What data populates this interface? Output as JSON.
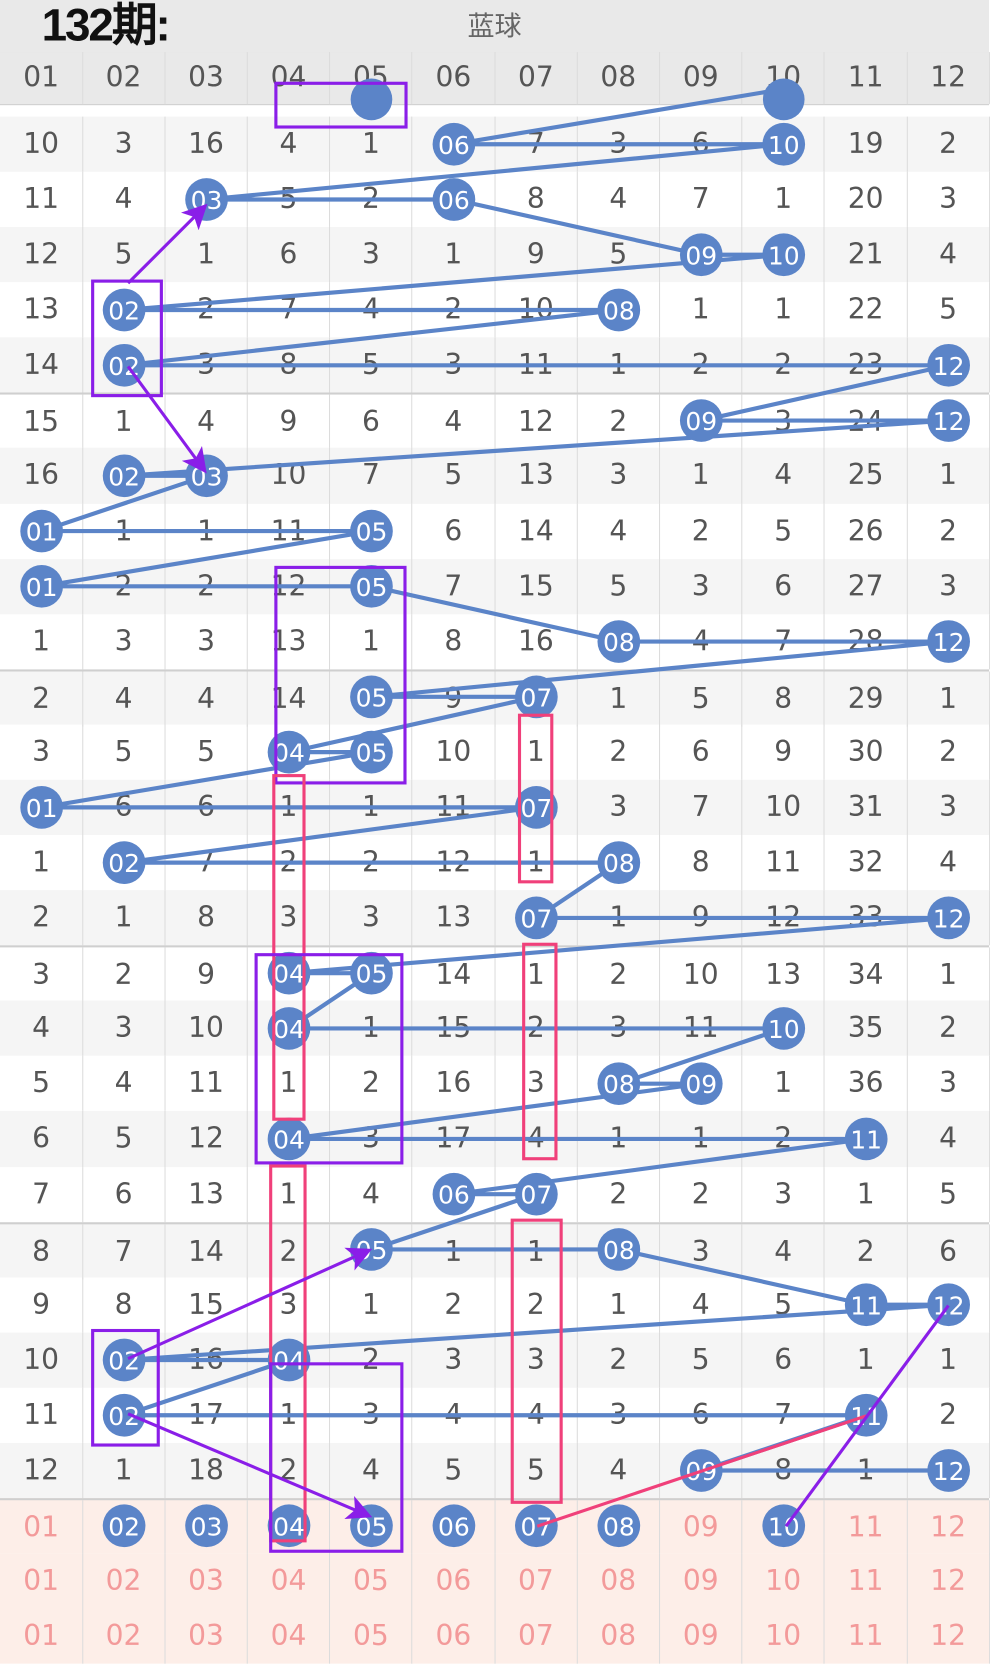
{
  "header": {
    "title": "蓝球"
  },
  "columns": [
    "01",
    "02",
    "03",
    "04",
    "05",
    "06",
    "07",
    "08",
    "09",
    "10",
    "11",
    "12"
  ],
  "colors": {
    "ball": "#5b84c8",
    "line": "#5b84c8",
    "annot_purple": "#8a1ee8",
    "annot_pink": "#f0407a",
    "pred_text": "#f39a9a",
    "pred_bg": "#fdeee8"
  },
  "partial_top_hits": [
    5,
    10
  ],
  "rows": [
    {
      "cells": [
        "10",
        "3",
        "16",
        "4",
        "1",
        "06",
        "7",
        "3",
        "6",
        "10",
        "19",
        "2"
      ],
      "hits": [
        6,
        10
      ]
    },
    {
      "cells": [
        "11",
        "4",
        "03",
        "5",
        "2",
        "06",
        "8",
        "4",
        "7",
        "1",
        "20",
        "3"
      ],
      "hits": [
        3,
        6
      ]
    },
    {
      "cells": [
        "12",
        "5",
        "1",
        "6",
        "3",
        "1",
        "9",
        "5",
        "09",
        "10",
        "21",
        "4"
      ],
      "hits": [
        9,
        10
      ]
    },
    {
      "cells": [
        "13",
        "02",
        "2",
        "7",
        "4",
        "2",
        "10",
        "08",
        "1",
        "1",
        "22",
        "5"
      ],
      "hits": [
        2,
        8
      ]
    },
    {
      "cells": [
        "14",
        "02",
        "3",
        "8",
        "5",
        "3",
        "11",
        "1",
        "2",
        "2",
        "23",
        "12"
      ],
      "hits": [
        2,
        12
      ]
    },
    {
      "cells": [
        "15",
        "1",
        "4",
        "9",
        "6",
        "4",
        "12",
        "2",
        "09",
        "3",
        "24",
        "12"
      ],
      "hits": [
        9,
        12
      ]
    },
    {
      "cells": [
        "16",
        "02",
        "03",
        "10",
        "7",
        "5",
        "13",
        "3",
        "1",
        "4",
        "25",
        "1"
      ],
      "hits": [
        2,
        3
      ]
    },
    {
      "cells": [
        "01",
        "1",
        "1",
        "11",
        "05",
        "6",
        "14",
        "4",
        "2",
        "5",
        "26",
        "2"
      ],
      "hits": [
        1,
        5
      ]
    },
    {
      "cells": [
        "01",
        "2",
        "2",
        "12",
        "05",
        "7",
        "15",
        "5",
        "3",
        "6",
        "27",
        "3"
      ],
      "hits": [
        1,
        5
      ]
    },
    {
      "cells": [
        "1",
        "3",
        "3",
        "13",
        "1",
        "8",
        "16",
        "08",
        "4",
        "7",
        "28",
        "12"
      ],
      "hits": [
        8,
        12
      ]
    },
    {
      "cells": [
        "2",
        "4",
        "4",
        "14",
        "05",
        "9",
        "07",
        "1",
        "5",
        "8",
        "29",
        "1"
      ],
      "hits": [
        5,
        7
      ]
    },
    {
      "cells": [
        "3",
        "5",
        "5",
        "04",
        "05",
        "10",
        "1",
        "2",
        "6",
        "9",
        "30",
        "2"
      ],
      "hits": [
        4,
        5
      ]
    },
    {
      "cells": [
        "01",
        "6",
        "6",
        "1",
        "1",
        "11",
        "07",
        "3",
        "7",
        "10",
        "31",
        "3"
      ],
      "hits": [
        1,
        7
      ]
    },
    {
      "cells": [
        "1",
        "02",
        "7",
        "2",
        "2",
        "12",
        "1",
        "08",
        "8",
        "11",
        "32",
        "4"
      ],
      "hits": [
        2,
        8
      ]
    },
    {
      "cells": [
        "2",
        "1",
        "8",
        "3",
        "3",
        "13",
        "07",
        "1",
        "9",
        "12",
        "33",
        "12"
      ],
      "hits": [
        7,
        12
      ]
    },
    {
      "cells": [
        "3",
        "2",
        "9",
        "04",
        "05",
        "14",
        "1",
        "2",
        "10",
        "13",
        "34",
        "1"
      ],
      "hits": [
        4,
        5
      ]
    },
    {
      "cells": [
        "4",
        "3",
        "10",
        "04",
        "1",
        "15",
        "2",
        "3",
        "11",
        "10",
        "35",
        "2"
      ],
      "hits": [
        4,
        10
      ]
    },
    {
      "cells": [
        "5",
        "4",
        "11",
        "1",
        "2",
        "16",
        "3",
        "08",
        "09",
        "1",
        "36",
        "3"
      ],
      "hits": [
        8,
        9
      ]
    },
    {
      "cells": [
        "6",
        "5",
        "12",
        "04",
        "3",
        "17",
        "4",
        "1",
        "1",
        "2",
        "11",
        "4"
      ],
      "hits": [
        4,
        11
      ]
    },
    {
      "cells": [
        "7",
        "6",
        "13",
        "1",
        "4",
        "06",
        "07",
        "2",
        "2",
        "3",
        "1",
        "5"
      ],
      "hits": [
        6,
        7
      ]
    },
    {
      "cells": [
        "8",
        "7",
        "14",
        "2",
        "05",
        "1",
        "1",
        "08",
        "3",
        "4",
        "2",
        "6"
      ],
      "hits": [
        5,
        8
      ]
    },
    {
      "cells": [
        "9",
        "8",
        "15",
        "3",
        "1",
        "2",
        "2",
        "1",
        "4",
        "5",
        "11",
        "12"
      ],
      "hits": [
        11,
        12
      ]
    },
    {
      "cells": [
        "10",
        "02",
        "16",
        "04",
        "2",
        "3",
        "3",
        "2",
        "5",
        "6",
        "1",
        "1"
      ],
      "hits": [
        2,
        4
      ]
    },
    {
      "cells": [
        "11",
        "02",
        "17",
        "1",
        "3",
        "4",
        "4",
        "3",
        "6",
        "7",
        "11",
        "2"
      ],
      "hits": [
        2,
        11
      ]
    },
    {
      "cells": [
        "12",
        "1",
        "18",
        "2",
        "4",
        "5",
        "5",
        "4",
        "09",
        "8",
        "1",
        "12"
      ],
      "hits": [
        9,
        12
      ]
    }
  ],
  "prediction_rows": [
    {
      "cells": [
        "01",
        "02",
        "03",
        "04",
        "05",
        "06",
        "07",
        "08",
        "09",
        "10",
        "11",
        "12"
      ],
      "hits": [
        2,
        3,
        4,
        5,
        6,
        7,
        8,
        10
      ]
    },
    {
      "cells": [
        "01",
        "02",
        "03",
        "04",
        "05",
        "06",
        "07",
        "08",
        "09",
        "10",
        "11",
        "12"
      ],
      "hits": []
    },
    {
      "cells": [
        "01",
        "02",
        "03",
        "04",
        "05",
        "06",
        "07",
        "08",
        "09",
        "10",
        "11",
        "12"
      ],
      "hits": []
    }
  ],
  "annotation_label": "132期:"
}
